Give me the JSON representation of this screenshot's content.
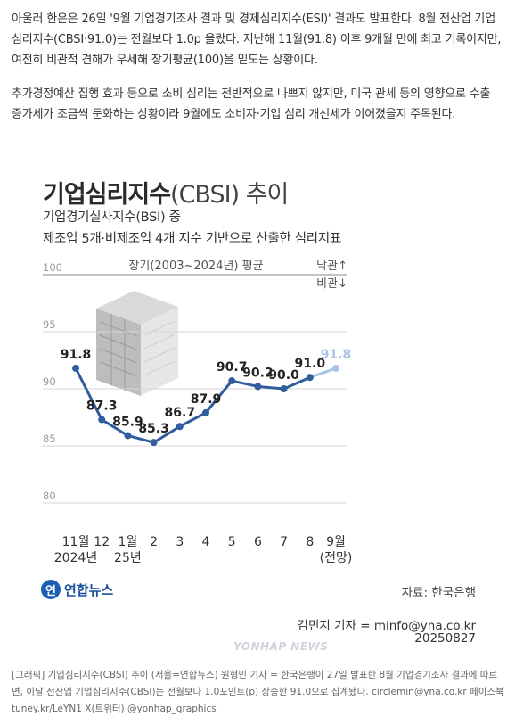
{
  "article": {
    "p1_a": "아울러 한은은 26일 '9월 기업경기조사 결과 및 경제심리지수(ESI)' 결과도 발표한다. 8월 전산업 기업심리지수(CBSI·91.0)는 전월보다 1.0p 올랐다. 지난해 11월(91.8) 이후 9개월 만에 최고 기록이지만, 여전히 비관적 견해가 우세해 장기평균(100)을 밑도는 상황이다.",
    "p2": "추가경정예산 집행 효과 등으로 소비 심리는 전반적으로 나쁘지 않지만, 미국 관세 등의 영향으로 수출 증가세가 조금씩 둔화하는 상황이라 9월에도 소비자·기업 심리 개선세가 이어졌을지 주목된다."
  },
  "graphic": {
    "title_bold": "기업심리지수",
    "title_thin": "(CBSI) 추이",
    "subtitle1": "기업경기실사지수(BSI) 중",
    "subtitle2": "제조업 5개·비제조업 4개 지수 기반으로 산출한 심리지표",
    "logo_mark": "연",
    "logo_text": "연합뉴스",
    "source": "자료: 한국은행",
    "reporter": "김민지 기자 = minfo@yna.co.kr",
    "date": "20250827",
    "watermark": "YONHAP NEWS"
  },
  "chart_data": {
    "type": "line",
    "title": "기업심리지수(CBSI) 추이",
    "categories": [
      "11월\n2024년",
      "12",
      "1월\n25년",
      "2",
      "3",
      "4",
      "5",
      "6",
      "7",
      "8",
      "9월\n(전망)"
    ],
    "values": [
      91.8,
      87.3,
      85.9,
      85.3,
      86.7,
      87.9,
      90.7,
      90.2,
      90.0,
      91.0,
      91.8
    ],
    "labels": [
      "91.8",
      "87.3",
      "85.9",
      "85.3",
      "86.7",
      "87.9",
      "90.7",
      "90.2",
      "90.0",
      "91.0",
      "91.8"
    ],
    "forecast_index": 10,
    "yticks": [
      80,
      85,
      90,
      95,
      100
    ],
    "ylim": [
      80,
      100
    ],
    "reference_line": {
      "value": 100,
      "label": "장기(2003~2024년) 평균"
    },
    "optimism_label": "낙관↑",
    "pessimism_label": "비관↓",
    "grid": true,
    "line_color": "#2f5d9e",
    "forecast_color": "#a9c4e4"
  },
  "caption": "[그래픽] 기업심리지수(CBSI) 추이 (서울=연합뉴스) 원형민 기자 = 한국은행이 27일 발표한 8월 기업경기조사 결과에 따르면, 이달 전산업 기업심리지수(CBSI)는 전월보다 1.0포인트(p) 상승한 91.0으로 집계됐다. circlemin@yna.co.kr 페이스북 tuney.kr/LeYN1 X(트위터) @yonhap_graphics"
}
